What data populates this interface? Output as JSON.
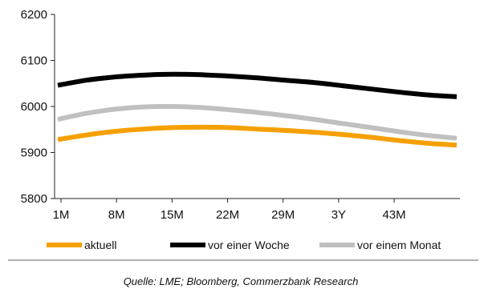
{
  "chart_data": {
    "type": "line",
    "x_tick_labels": [
      "1M",
      "8M",
      "15M",
      "22M",
      "29M",
      "3Y",
      "43M"
    ],
    "ylim": [
      5800,
      6200
    ],
    "y_ticks": [
      5800,
      5900,
      6000,
      6100,
      6200
    ],
    "grid": false,
    "legend_position": "bottom",
    "series": [
      {
        "name": "aktuell",
        "color": "#f5a000",
        "values": [
          5928,
          5938,
          5946,
          5951,
          5954,
          5955,
          5954,
          5951,
          5948,
          5944,
          5939,
          5933,
          5926,
          5920,
          5916
        ]
      },
      {
        "name": "vor einer Woche",
        "color": "#000000",
        "values": [
          6046,
          6057,
          6064,
          6068,
          6070,
          6069,
          6066,
          6062,
          6057,
          6052,
          6045,
          6038,
          6031,
          6025,
          6021
        ]
      },
      {
        "name": "vor einem Monat",
        "color": "#c0c0c0",
        "values": [
          5972,
          5985,
          5994,
          5999,
          6000,
          5998,
          5993,
          5987,
          5980,
          5972,
          5963,
          5954,
          5945,
          5937,
          5931
        ]
      }
    ],
    "source": "Quelle: LME; Bloomberg, Commerzbank Research"
  }
}
